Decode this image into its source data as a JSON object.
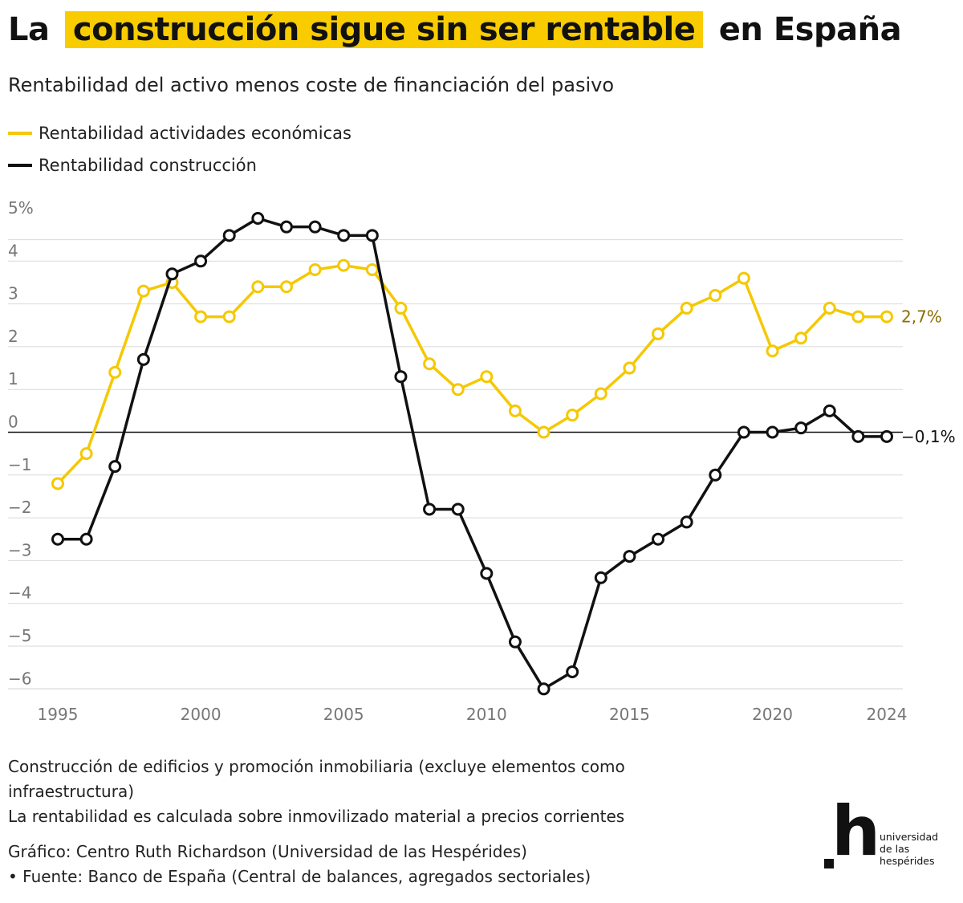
{
  "title": {
    "before": "La",
    "highlight": "construcción sigue sin ser rentable",
    "after": "en España",
    "highlight_color": "#f9cc00"
  },
  "subtitle": "Rentabilidad del activo menos coste de financiación del pasivo",
  "legend": [
    {
      "label": "Rentabilidad actividades económicas",
      "color": "#f5c800"
    },
    {
      "label": "Rentabilidad construcción",
      "color": "#111111"
    }
  ],
  "chart_data": {
    "type": "line",
    "x": [
      1995,
      1996,
      1997,
      1998,
      1999,
      2000,
      2001,
      2002,
      2003,
      2004,
      2005,
      2006,
      2007,
      2008,
      2009,
      2010,
      2011,
      2012,
      2013,
      2014,
      2015,
      2016,
      2017,
      2018,
      2019,
      2020,
      2021,
      2022,
      2023,
      2024
    ],
    "series": [
      {
        "name": "Rentabilidad actividades económicas",
        "color": "#f5c800",
        "values": [
          -1.2,
          -0.5,
          1.4,
          3.3,
          3.5,
          2.7,
          2.7,
          3.4,
          3.4,
          3.8,
          3.9,
          3.8,
          2.9,
          1.6,
          1.0,
          1.3,
          0.5,
          0.0,
          0.4,
          0.9,
          1.5,
          2.3,
          2.9,
          3.2,
          3.6,
          1.9,
          2.2,
          2.9,
          2.7,
          2.7
        ],
        "end_label": "2,7%",
        "end_label_color": "#8a6d00"
      },
      {
        "name": "Rentabilidad construcción",
        "color": "#111111",
        "values": [
          -2.5,
          -2.5,
          -0.8,
          1.7,
          3.7,
          4.0,
          4.6,
          5.0,
          4.8,
          4.8,
          4.6,
          4.6,
          1.3,
          -1.8,
          -1.8,
          -3.3,
          -4.9,
          -6.0,
          -5.6,
          -3.4,
          -2.9,
          -2.5,
          -2.1,
          -1.0,
          0.0,
          0.0,
          0.1,
          0.5,
          -0.1,
          -0.1
        ],
        "end_label": "−0,1%",
        "end_label_color": "#111111"
      }
    ],
    "y_ticks": [
      {
        "value": 5,
        "label": "5%"
      },
      {
        "value": 4,
        "label": "4"
      },
      {
        "value": 3,
        "label": "3"
      },
      {
        "value": 2,
        "label": "2"
      },
      {
        "value": 1,
        "label": "1"
      },
      {
        "value": 0,
        "label": "0"
      },
      {
        "value": -1,
        "label": "−1"
      },
      {
        "value": -2,
        "label": "−2"
      },
      {
        "value": -3,
        "label": "−3"
      },
      {
        "value": -4,
        "label": "−4"
      },
      {
        "value": -5,
        "label": "−5"
      },
      {
        "value": -6,
        "label": "−6"
      }
    ],
    "x_ticks": [
      1995,
      2000,
      2005,
      2010,
      2015,
      2020,
      2024
    ],
    "xlim": [
      1995,
      2024
    ],
    "ylim": [
      -6.3,
      5.3
    ],
    "grid": true
  },
  "notes": [
    "Construcción de edificios y promoción inmobiliaria (excluye elementos como infraestructura)",
    "La rentabilidad es calculada sobre inmovilizado material a precios corrientes"
  ],
  "credit": {
    "graphic": "Gráfico: Centro Ruth Richardson (Universidad de las Hespérides)",
    "source": " • Fuente: Banco de España (Central de balances, agregados sectoriales)"
  },
  "logo": {
    "mark": "h",
    "lines": [
      "universidad",
      "de las",
      "hespérides"
    ]
  }
}
